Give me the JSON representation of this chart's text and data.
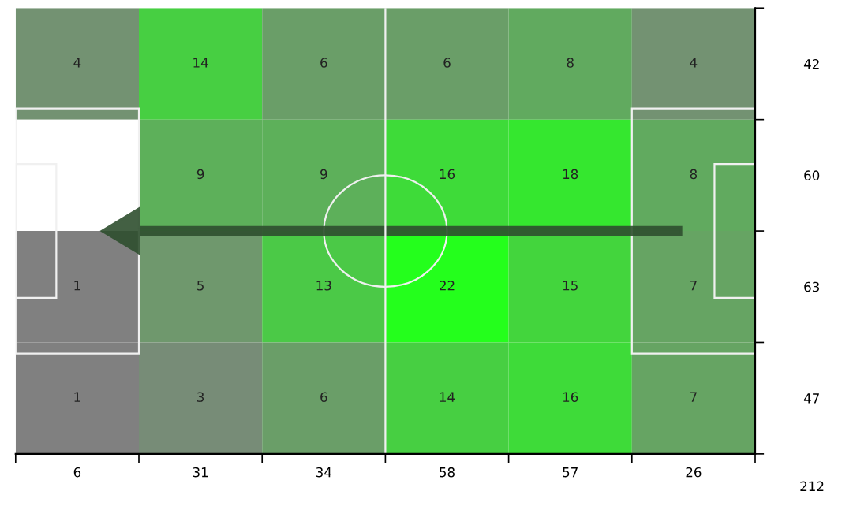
{
  "chart_data": {
    "type": "heatmap",
    "categories": [
      "6",
      "31",
      "34",
      "58",
      "57",
      "26"
    ],
    "y_categories": [
      null,
      null,
      null,
      null
    ],
    "y2_categories": [
      "42",
      "60",
      "63",
      "47"
    ],
    "cells": [
      [
        4,
        14,
        6,
        6,
        8,
        4
      ],
      [
        null,
        9,
        9,
        16,
        18,
        8
      ],
      [
        1,
        5,
        13,
        22,
        15,
        7
      ],
      [
        1,
        3,
        6,
        14,
        16,
        7
      ]
    ],
    "data_labels": true,
    "annotations": [
      "212"
    ]
  }
}
